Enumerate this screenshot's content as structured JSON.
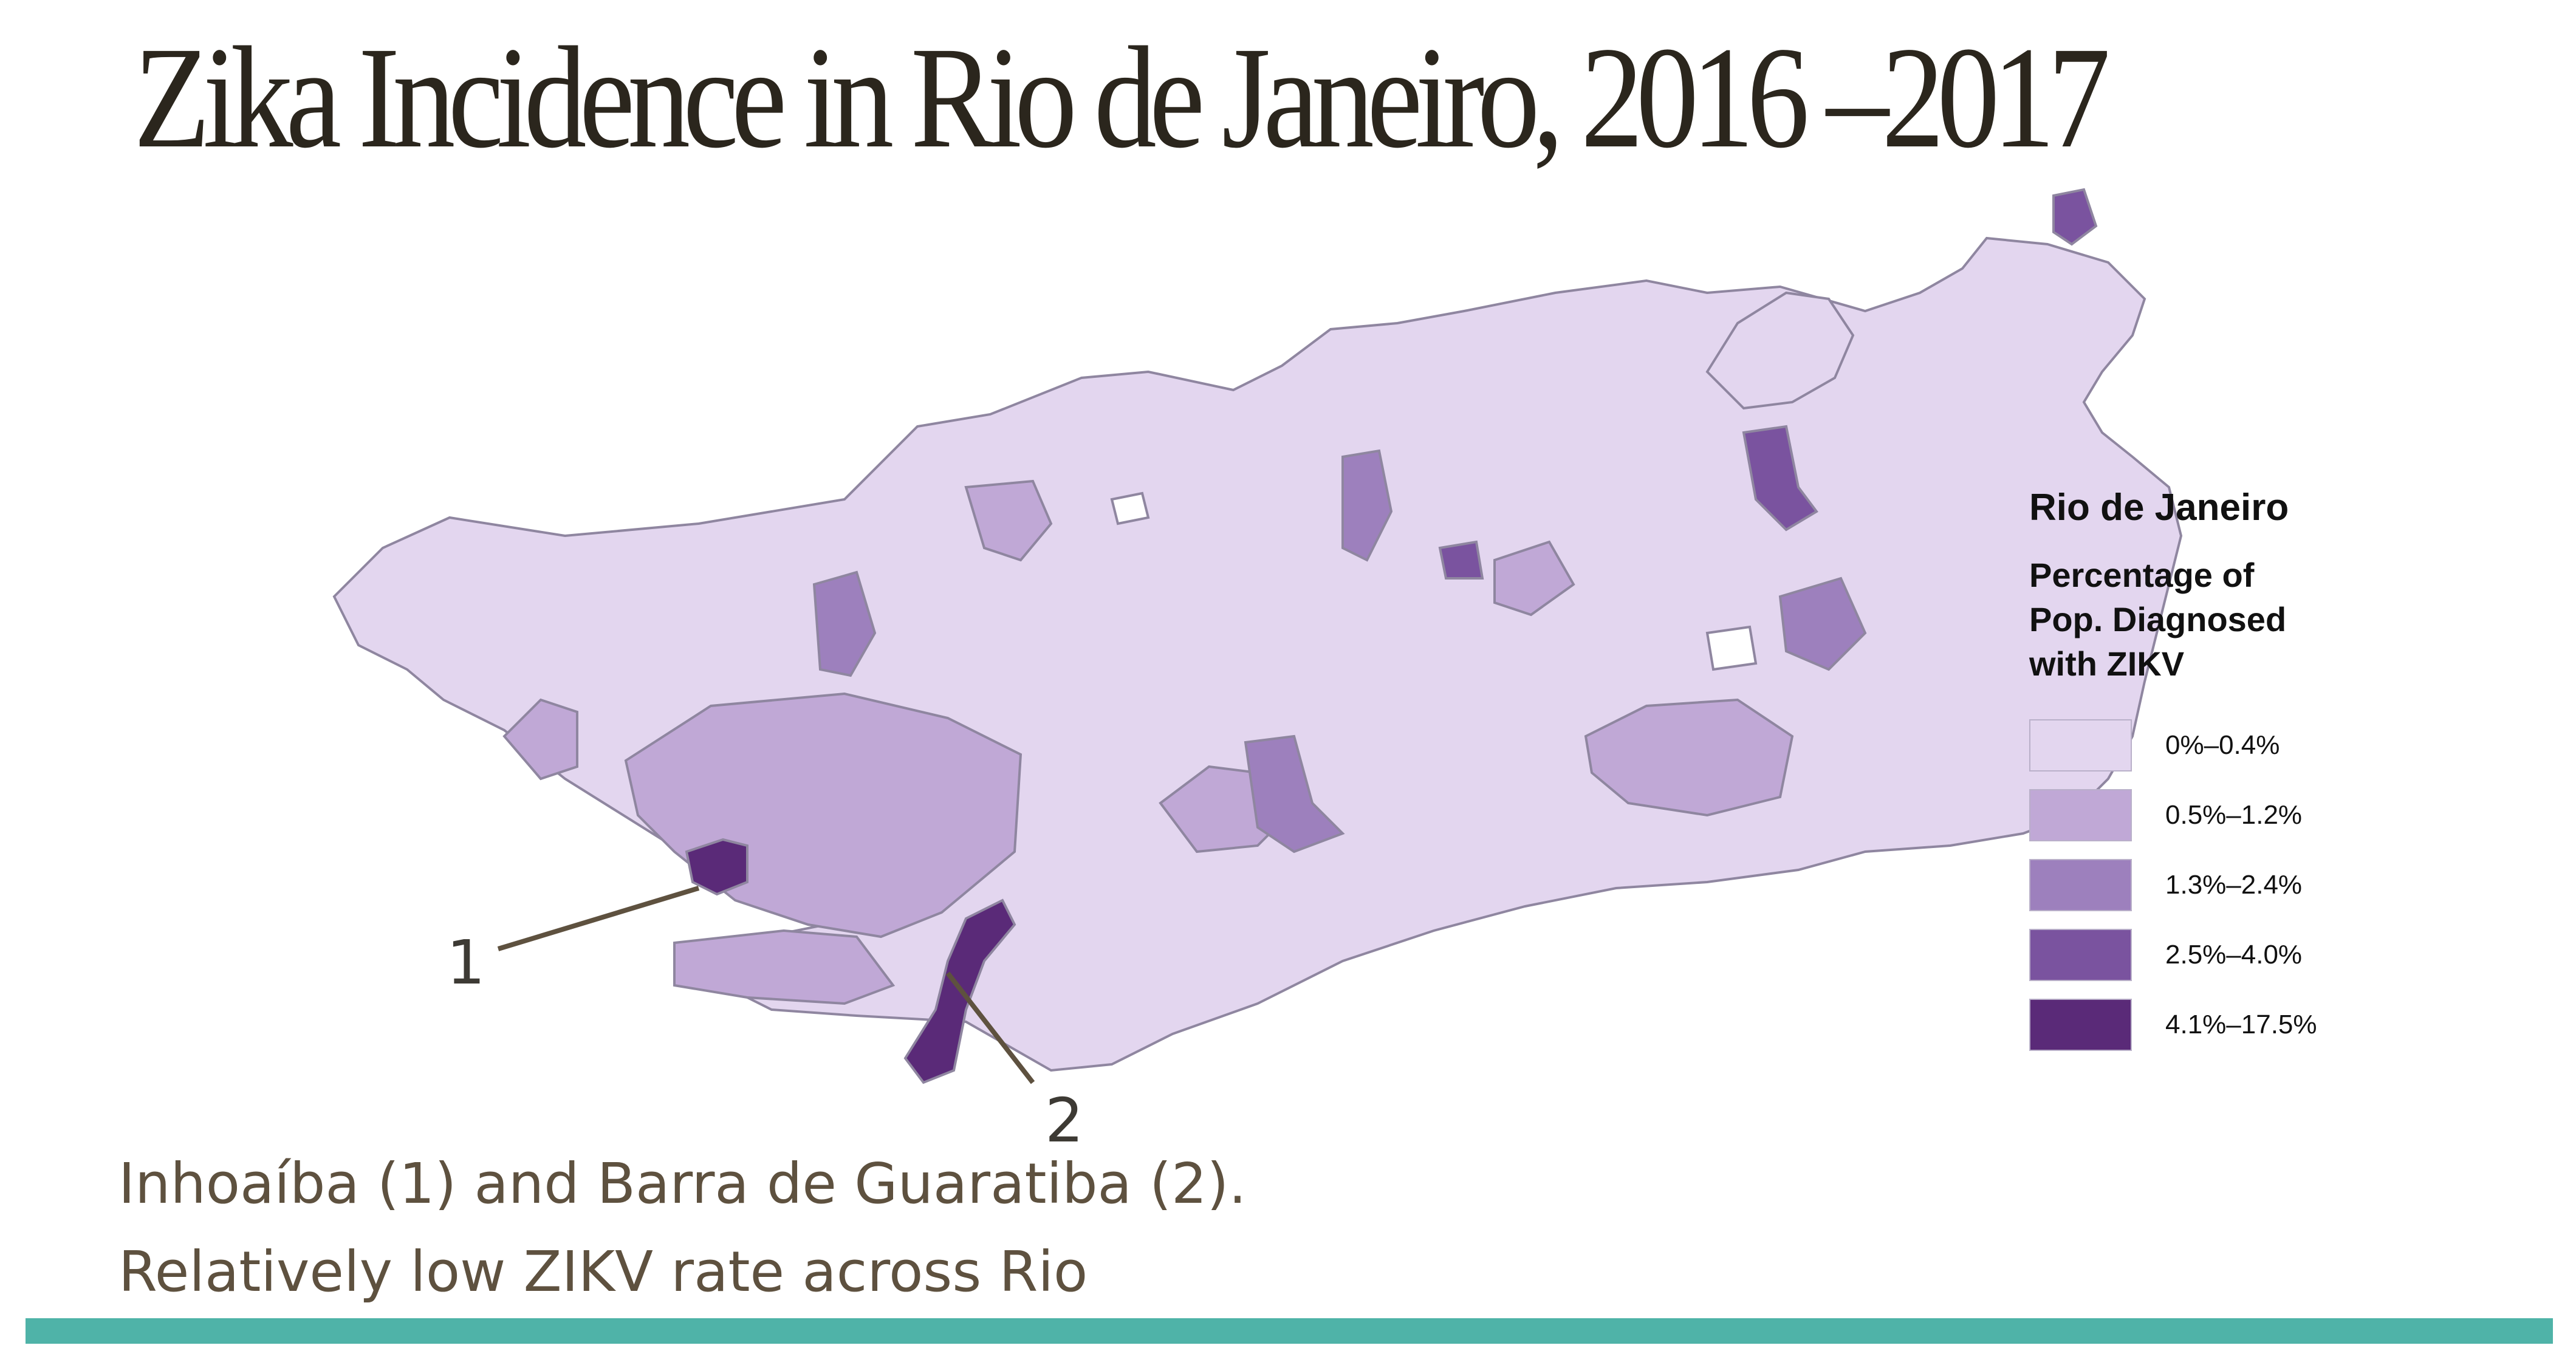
{
  "slide": {
    "title": "Zika Incidence in Rio de Janeiro, 2016 –2017",
    "caption_line1": "Inhoaíba (1) and Barra de Guaratiba (2).",
    "caption_line2": "Relatively low ZIKV rate across Rio",
    "accent_bar_color": "#4fb3a8"
  },
  "map": {
    "callouts": [
      "1",
      "2"
    ],
    "legend": {
      "title": "Rio de Janeiro",
      "subtitle_lines": [
        "Percentage of",
        "Pop. Diagnosed",
        "with ZIKV"
      ],
      "classes": [
        {
          "label": "0%–0.4%",
          "color": "#e3d6ef"
        },
        {
          "label": "0.5%–1.2%",
          "color": "#c0a8d6"
        },
        {
          "label": "1.3%–2.4%",
          "color": "#9d80bd"
        },
        {
          "label": "2.5%–4.0%",
          "color": "#7a539f"
        },
        {
          "label": "4.1%–17.5%",
          "color": "#5a2a78"
        }
      ]
    }
  }
}
